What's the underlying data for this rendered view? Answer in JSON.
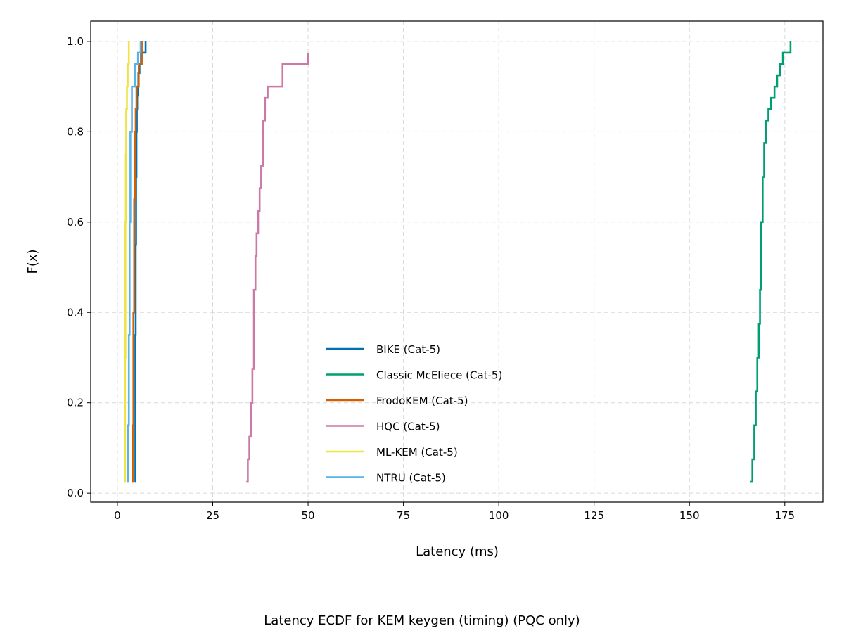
{
  "caption": "Latency ECDF for KEM keygen (timing) (PQC only)",
  "chart_data": {
    "type": "line",
    "subtype": "ecdf-step",
    "xlabel": "Latency (ms)",
    "ylabel": "F(x)",
    "xlim": [
      -7,
      185
    ],
    "ylim": [
      -0.02,
      1.045
    ],
    "xticks": [
      0,
      25,
      50,
      75,
      100,
      125,
      150,
      175
    ],
    "yticks": [
      0.0,
      0.2,
      0.4,
      0.6,
      0.8,
      1.0
    ],
    "xtick_labels": [
      "0",
      "25",
      "50",
      "75",
      "100",
      "125",
      "150",
      "175"
    ],
    "ytick_labels": [
      "0.0",
      "0.2",
      "0.4",
      "0.6",
      "0.8",
      "1.0"
    ],
    "grid": true,
    "legend_position": "lower-center",
    "series": [
      {
        "name": "BIKE (Cat-5)",
        "color": "#0072B2",
        "x": [
          4.6,
          4.7,
          4.8,
          4.9,
          5.0,
          5.1,
          5.2,
          5.3,
          5.5,
          5.8,
          6.2,
          7.4
        ],
        "y": [
          0.025,
          0.35,
          0.55,
          0.7,
          0.8,
          0.85,
          0.88,
          0.9,
          0.93,
          0.95,
          0.975,
          1.0
        ]
      },
      {
        "name": "Classic McEliece (Cat-5)",
        "color": "#009E73",
        "x": [
          166.0,
          166.5,
          167.0,
          167.4,
          167.8,
          168.2,
          168.5,
          168.8,
          169.2,
          169.6,
          170.0,
          170.7,
          171.4,
          172.3,
          173.0,
          173.8,
          174.5,
          176.5
        ],
        "y": [
          0.025,
          0.075,
          0.15,
          0.225,
          0.3,
          0.375,
          0.45,
          0.6,
          0.7,
          0.775,
          0.825,
          0.85,
          0.875,
          0.9,
          0.925,
          0.95,
          0.975,
          1.0
        ]
      },
      {
        "name": "FrodoKEM (Cat-5)",
        "color": "#D55E00",
        "x": [
          3.8,
          4.0,
          4.2,
          4.4,
          4.6,
          4.8,
          5.0,
          5.6,
          6.4
        ],
        "y": [
          0.025,
          0.15,
          0.4,
          0.65,
          0.8,
          0.85,
          0.9,
          0.95,
          1.0
        ]
      },
      {
        "name": "HQC (Cat-5)",
        "color": "#CC79A7",
        "x": [
          33.8,
          34.2,
          34.6,
          35.0,
          35.4,
          35.8,
          36.2,
          36.5,
          36.9,
          37.3,
          37.7,
          38.2,
          38.7,
          39.4,
          43.3,
          50.0
        ],
        "y": [
          0.025,
          0.075,
          0.125,
          0.2,
          0.275,
          0.45,
          0.525,
          0.575,
          0.625,
          0.675,
          0.725,
          0.825,
          0.875,
          0.9,
          0.95,
          0.975
        ]
      },
      {
        "name": "ML-KEM (Cat-5)",
        "color": "#F0E442",
        "x": [
          1.9,
          2.0,
          2.1,
          2.2,
          2.3,
          2.5,
          2.7,
          3.0
        ],
        "y": [
          0.025,
          0.3,
          0.6,
          0.75,
          0.85,
          0.9,
          0.95,
          1.0
        ]
      },
      {
        "name": "NTRU (Cat-5)",
        "color": "#56B4E9",
        "x": [
          2.6,
          2.8,
          3.0,
          3.2,
          3.4,
          3.8,
          4.6,
          5.4,
          6.1
        ],
        "y": [
          0.025,
          0.15,
          0.35,
          0.6,
          0.8,
          0.9,
          0.95,
          0.975,
          1.0
        ]
      }
    ]
  }
}
